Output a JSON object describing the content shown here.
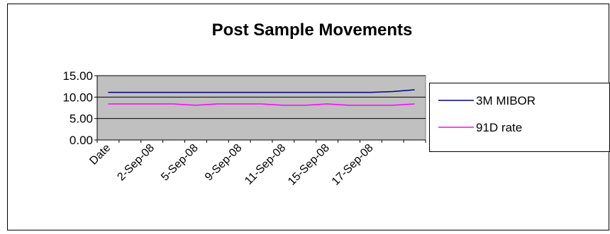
{
  "chart_data": {
    "type": "line",
    "title": "Post Sample Movements",
    "categories": [
      "Date",
      null,
      "2-Sep-08",
      null,
      "5-Sep-08",
      null,
      "9-Sep-08",
      null,
      "11-Sep-08",
      null,
      "15-Sep-08",
      null,
      "17-Sep-08",
      null,
      null
    ],
    "series": [
      {
        "name": "3M MIBOR",
        "color": "#000080",
        "values": [
          11.1,
          11.1,
          11.1,
          11.1,
          11.1,
          11.1,
          11.1,
          11.1,
          11.1,
          11.1,
          11.1,
          11.1,
          11.1,
          11.3,
          11.7
        ]
      },
      {
        "name": "91D rate",
        "color": "#ff00ff",
        "values": [
          8.4,
          8.4,
          8.4,
          8.4,
          8.1,
          8.4,
          8.4,
          8.4,
          8.1,
          8.1,
          8.4,
          8.1,
          8.1,
          8.1,
          8.4
        ]
      }
    ],
    "ylim": [
      0,
      15
    ],
    "yticks": [
      {
        "value": 0,
        "label": "0.00"
      },
      {
        "value": 5,
        "label": "5.00"
      },
      {
        "value": 10,
        "label": "10.00"
      },
      {
        "value": 15,
        "label": "15.00"
      }
    ],
    "grid": true,
    "legend": "right",
    "plot_color": "#c0c0c0"
  }
}
